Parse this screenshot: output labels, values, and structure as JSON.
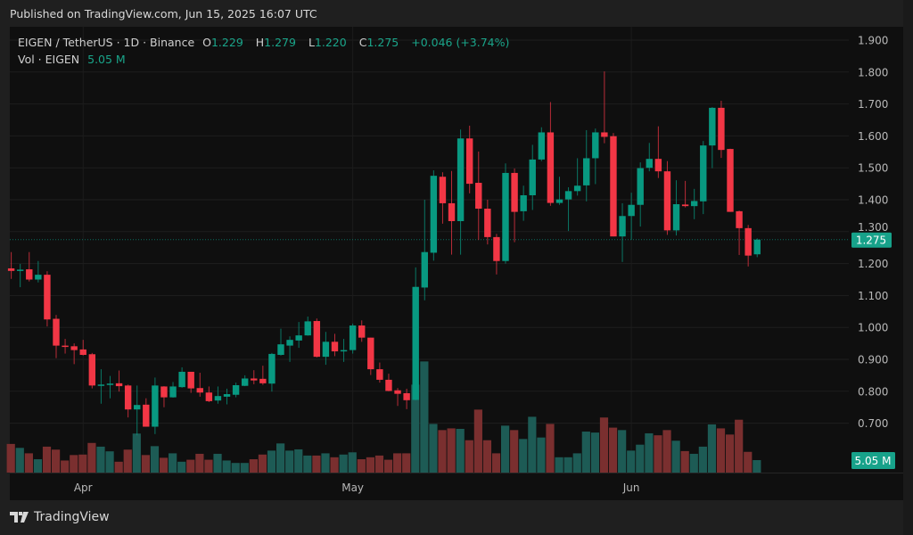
{
  "published": "Published on TradingView.com, Jun 15, 2025 16:07 UTC",
  "legend": {
    "symbol": "EIGEN / TetherUS · 1D · Binance",
    "open_label": "O",
    "open": "1.229",
    "high_label": "H",
    "high": "1.279",
    "low_label": "L",
    "low": "1.220",
    "close_label": "C",
    "close": "1.275",
    "change": "+0.046 (+3.74%)",
    "vol_label": "Vol · EIGEN",
    "vol_value": "5.05 M"
  },
  "footer": {
    "brand": "TradingView",
    "logo_icon": "tradingview-logo-icon"
  },
  "colors": {
    "up": "#089981",
    "down": "#f23645",
    "vol_up": "#1d5b55",
    "vol_down": "#7a2f2f",
    "background": "#0f0f0f",
    "frame": "#1f1f1f"
  },
  "chart_data": {
    "type": "candlestick",
    "title": "EIGEN / TetherUS · 1D · Binance",
    "xlabel": "",
    "ylabel": "",
    "ylim": [
      0.64,
      1.93
    ],
    "y_ticks": [
      "1.900",
      "1.800",
      "1.700",
      "1.600",
      "1.500",
      "1.400",
      "1.300",
      "1.200",
      "1.100",
      "1.000",
      "0.900",
      "0.800",
      "0.700"
    ],
    "x_ticks": [
      {
        "label": "Apr",
        "date": "2025-04-01"
      },
      {
        "label": "May",
        "date": "2025-05-01"
      },
      {
        "label": "Jun",
        "date": "2025-06-01"
      }
    ],
    "start_date": "2025-03-24",
    "end_date": "2025-06-15",
    "grid": true,
    "last_price_label": "1.275",
    "last_volume_label": "5.05 M",
    "ohlc": [
      [
        1.185,
        1.236,
        1.152,
        1.177
      ],
      [
        1.178,
        1.199,
        1.126,
        1.181
      ],
      [
        1.182,
        1.236,
        1.144,
        1.15
      ],
      [
        1.15,
        1.208,
        1.141,
        1.165
      ],
      [
        1.165,
        1.176,
        1.003,
        1.025
      ],
      [
        1.027,
        1.039,
        0.904,
        0.943
      ],
      [
        0.943,
        0.964,
        0.918,
        0.94
      ],
      [
        0.941,
        0.95,
        0.885,
        0.929
      ],
      [
        0.931,
        0.961,
        0.912,
        0.914
      ],
      [
        0.916,
        0.92,
        0.809,
        0.818
      ],
      [
        0.818,
        0.869,
        0.761,
        0.821
      ],
      [
        0.821,
        0.848,
        0.778,
        0.824
      ],
      [
        0.825,
        0.865,
        0.799,
        0.816
      ],
      [
        0.818,
        0.821,
        0.718,
        0.743
      ],
      [
        0.743,
        0.818,
        0.662,
        0.757
      ],
      [
        0.758,
        0.778,
        0.689,
        0.689
      ],
      [
        0.689,
        0.843,
        0.666,
        0.818
      ],
      [
        0.815,
        0.816,
        0.75,
        0.781
      ],
      [
        0.781,
        0.829,
        0.78,
        0.815
      ],
      [
        0.813,
        0.875,
        0.811,
        0.861
      ],
      [
        0.861,
        0.861,
        0.795,
        0.809
      ],
      [
        0.81,
        0.858,
        0.783,
        0.796
      ],
      [
        0.796,
        0.815,
        0.766,
        0.769
      ],
      [
        0.771,
        0.815,
        0.761,
        0.785
      ],
      [
        0.783,
        0.808,
        0.759,
        0.791
      ],
      [
        0.789,
        0.827,
        0.781,
        0.819
      ],
      [
        0.817,
        0.85,
        0.816,
        0.84
      ],
      [
        0.84,
        0.866,
        0.822,
        0.834
      ],
      [
        0.839,
        0.88,
        0.82,
        0.825
      ],
      [
        0.824,
        0.92,
        0.799,
        0.917
      ],
      [
        0.914,
        0.996,
        0.912,
        0.947
      ],
      [
        0.943,
        0.972,
        0.892,
        0.961
      ],
      [
        0.959,
        1.017,
        0.936,
        0.975
      ],
      [
        0.975,
        1.034,
        0.974,
        1.019
      ],
      [
        1.02,
        1.028,
        0.906,
        0.908
      ],
      [
        0.908,
        0.986,
        0.883,
        0.955
      ],
      [
        0.955,
        0.98,
        0.91,
        0.925
      ],
      [
        0.927,
        0.964,
        0.892,
        0.929
      ],
      [
        0.929,
        1.012,
        0.918,
        1.006
      ],
      [
        1.006,
        1.022,
        0.955,
        0.968
      ],
      [
        0.968,
        0.968,
        0.851,
        0.869
      ],
      [
        0.869,
        0.89,
        0.827,
        0.836
      ],
      [
        0.836,
        0.855,
        0.8,
        0.801
      ],
      [
        0.803,
        0.81,
        0.754,
        0.792
      ],
      [
        0.794,
        0.808,
        0.744,
        0.772
      ],
      [
        0.773,
        1.188,
        0.772,
        1.127
      ],
      [
        1.125,
        1.4,
        1.085,
        1.236
      ],
      [
        1.234,
        1.492,
        1.209,
        1.475
      ],
      [
        1.472,
        1.486,
        1.325,
        1.389
      ],
      [
        1.389,
        1.49,
        1.228,
        1.333
      ],
      [
        1.333,
        1.62,
        1.228,
        1.592
      ],
      [
        1.592,
        1.632,
        1.42,
        1.45
      ],
      [
        1.453,
        1.551,
        1.274,
        1.372
      ],
      [
        1.372,
        1.4,
        1.26,
        1.283
      ],
      [
        1.283,
        1.293,
        1.166,
        1.208
      ],
      [
        1.208,
        1.514,
        1.2,
        1.484
      ],
      [
        1.484,
        1.498,
        1.267,
        1.362
      ],
      [
        1.364,
        1.444,
        1.334,
        1.414
      ],
      [
        1.414,
        1.572,
        1.368,
        1.526
      ],
      [
        1.526,
        1.627,
        1.521,
        1.611
      ],
      [
        1.611,
        1.706,
        1.381,
        1.39
      ],
      [
        1.39,
        1.472,
        1.384,
        1.401
      ],
      [
        1.401,
        1.439,
        1.302,
        1.427
      ],
      [
        1.427,
        1.53,
        1.413,
        1.444
      ],
      [
        1.445,
        1.618,
        1.395,
        1.53
      ],
      [
        1.53,
        1.623,
        1.449,
        1.611
      ],
      [
        1.611,
        1.802,
        1.577,
        1.597
      ],
      [
        1.599,
        1.609,
        1.285,
        1.285
      ],
      [
        1.285,
        1.389,
        1.205,
        1.349
      ],
      [
        1.349,
        1.422,
        1.275,
        1.384
      ],
      [
        1.384,
        1.517,
        1.316,
        1.499
      ],
      [
        1.5,
        1.578,
        1.489,
        1.528
      ],
      [
        1.528,
        1.63,
        1.468,
        1.489
      ],
      [
        1.489,
        1.521,
        1.29,
        1.304
      ],
      [
        1.304,
        1.461,
        1.288,
        1.386
      ],
      [
        1.385,
        1.459,
        1.376,
        1.38
      ],
      [
        1.38,
        1.434,
        1.339,
        1.396
      ],
      [
        1.395,
        1.584,
        1.355,
        1.57
      ],
      [
        1.57,
        1.69,
        1.499,
        1.688
      ],
      [
        1.688,
        1.71,
        1.531,
        1.556
      ],
      [
        1.559,
        1.56,
        1.362,
        1.362
      ],
      [
        1.364,
        1.366,
        1.227,
        1.311
      ],
      [
        1.311,
        1.321,
        1.191,
        1.225
      ],
      [
        1.229,
        1.279,
        1.22,
        1.275
      ]
    ],
    "volume_millions": [
      11.6,
      10.0,
      7.8,
      5.4,
      10.5,
      9.3,
      4.9,
      7.1,
      7.3,
      12.0,
      10.5,
      8.6,
      4.4,
      9.3,
      15.8,
      7.1,
      10.7,
      6.0,
      7.8,
      4.4,
      5.2,
      7.6,
      5.2,
      7.6,
      4.9,
      3.9,
      3.9,
      5.4,
      7.3,
      8.9,
      11.8,
      8.9,
      9.4,
      6.9,
      6.9,
      7.8,
      6.2,
      7.3,
      8.2,
      5.4,
      6.2,
      6.9,
      5.2,
      7.8,
      7.8,
      35.6,
      45.0,
      19.7,
      17.2,
      17.9,
      17.7,
      13.1,
      25.5,
      13.1,
      7.8,
      19.0,
      17.2,
      13.6,
      22.6,
      14.2,
      19.7,
      6.2,
      6.2,
      7.8,
      16.6,
      16.2,
      22.3,
      18.2,
      17.2,
      8.9,
      11.3,
      15.9,
      15.1,
      17.2,
      12.9,
      8.7,
      7.6,
      10.5,
      19.5,
      17.9,
      15.4,
      21.4,
      8.4,
      5.05
    ]
  }
}
